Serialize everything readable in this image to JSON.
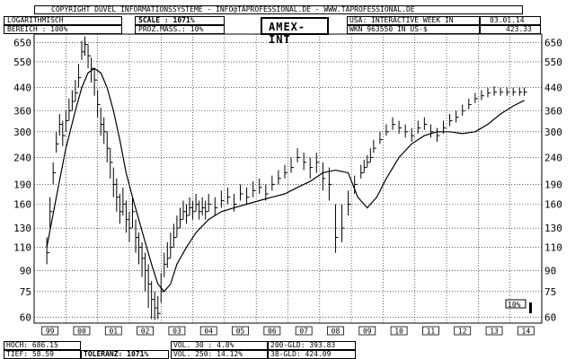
{
  "header": {
    "copyright": "COPYRIGHT  DUVEL INFORMATIONSSYSTEME  -  INFO@TAPROFESSIONAL.DE  -  WWW.TAPROFESSIONAL.DE",
    "scale_mode": "LOGARITHMISCH",
    "bereich": "BEREICH  :   100%",
    "scale": "SCALE :  1071%",
    "prozmass": "PROZ.MASS.:  10%",
    "title": "AMEX-INT",
    "source": "USA: INTERACTIVE WEEK IN",
    "date": "03.01.14",
    "wkn": "WKN 963550   IN US-$",
    "last_price": "423.33"
  },
  "footer": {
    "hoch": "HOCH: 686.15",
    "tief": "TIEF: 58.59",
    "toleranz": "TOLERANZ: 1071%",
    "vol30": "VOL. 30 :  4.8%",
    "vol250": "VOL. 250: 14.12%",
    "gld200": "200-GLD: 393.83",
    "gld38": "38-GLD: 424.09"
  },
  "marker_label": "10%",
  "chart_data": {
    "type": "line",
    "title": "AMEX-INT",
    "y_scale": "log",
    "ylim": [
      57,
      700
    ],
    "y_ticks": [
      60,
      75,
      90,
      110,
      130,
      160,
      190,
      240,
      300,
      360,
      440,
      550,
      650
    ],
    "x_tick_labels": [
      "99",
      "00",
      "01",
      "02",
      "03",
      "04",
      "05",
      "06",
      "07",
      "08",
      "09",
      "10",
      "11",
      "12",
      "13",
      "14"
    ],
    "grid": true,
    "series": [
      {
        "style": "ohlc-bars",
        "x": [
          1998.9,
          1999.0,
          1999.1,
          1999.2,
          1999.3,
          1999.4,
          1999.5,
          1999.6,
          1999.7,
          1999.8,
          1999.9,
          2000.0,
          2000.1,
          2000.2,
          2000.3,
          2000.4,
          2000.5,
          2000.6,
          2000.7,
          2000.8,
          2000.9,
          2001.0,
          2001.1,
          2001.2,
          2001.3,
          2001.4,
          2001.5,
          2001.6,
          2001.7,
          2001.8,
          2001.9,
          2002.0,
          2002.1,
          2002.2,
          2002.3,
          2002.4,
          2002.5,
          2002.6,
          2002.7,
          2002.8,
          2002.9,
          2003.0,
          2003.1,
          2003.2,
          2003.3,
          2003.4,
          2003.5,
          2003.6,
          2003.7,
          2003.8,
          2003.9,
          2004.0,
          2004.2,
          2004.4,
          2004.6,
          2004.8,
          2005.0,
          2005.2,
          2005.4,
          2005.6,
          2005.8,
          2006.0,
          2006.2,
          2006.4,
          2006.6,
          2006.8,
          2007.0,
          2007.2,
          2007.4,
          2007.6,
          2007.8,
          2008.0,
          2008.2,
          2008.4,
          2008.6,
          2008.8,
          2008.9,
          2009.0,
          2009.1,
          2009.2,
          2009.4,
          2009.6,
          2009.8,
          2010.0,
          2010.2,
          2010.4,
          2010.6,
          2010.8,
          2011.0,
          2011.2,
          2011.4,
          2011.6,
          2011.8,
          2012.0,
          2012.2,
          2012.4,
          2012.6,
          2012.8,
          2013.0,
          2013.2,
          2013.4,
          2013.6,
          2013.8,
          2013.95
        ],
        "close": [
          105,
          150,
          210,
          270,
          320,
          290,
          330,
          360,
          390,
          420,
          480,
          600,
          640,
          580,
          520,
          470,
          380,
          320,
          300,
          260,
          230,
          190,
          170,
          150,
          160,
          140,
          130,
          150,
          120,
          110,
          100,
          90,
          80,
          70,
          65,
          62,
          75,
          95,
          100,
          110,
          120,
          130,
          140,
          150,
          145,
          155,
          150,
          160,
          150,
          155,
          150,
          160,
          155,
          165,
          170,
          160,
          175,
          170,
          180,
          185,
          175,
          190,
          200,
          210,
          220,
          240,
          230,
          220,
          230,
          200,
          190,
          120,
          130,
          160,
          190,
          210,
          220,
          230,
          240,
          260,
          280,
          300,
          320,
          310,
          300,
          290,
          310,
          320,
          300,
          290,
          310,
          330,
          340,
          360,
          380,
          400,
          410,
          420,
          423,
          423,
          423,
          423,
          423,
          423
        ],
        "high": [
          120,
          170,
          230,
          300,
          350,
          330,
          360,
          400,
          430,
          470,
          540,
          660,
          686,
          640,
          570,
          520,
          430,
          370,
          340,
          300,
          260,
          220,
          200,
          175,
          185,
          165,
          150,
          170,
          140,
          125,
          115,
          105,
          95,
          82,
          75,
          72,
          88,
          105,
          115,
          125,
          135,
          145,
          155,
          165,
          160,
          170,
          165,
          175,
          165,
          170,
          165,
          175,
          170,
          180,
          185,
          175,
          190,
          185,
          195,
          200,
          190,
          205,
          215,
          225,
          240,
          260,
          250,
          240,
          250,
          230,
          220,
          160,
          160,
          180,
          205,
          225,
          235,
          245,
          260,
          280,
          300,
          320,
          340,
          330,
          320,
          310,
          330,
          340,
          320,
          310,
          330,
          350,
          360,
          380,
          400,
          420,
          430,
          440,
          445,
          440,
          440,
          440,
          440,
          440
        ],
        "low": [
          95,
          130,
          190,
          250,
          290,
          265,
          300,
          330,
          360,
          390,
          440,
          560,
          580,
          520,
          460,
          410,
          340,
          290,
          270,
          230,
          200,
          170,
          150,
          135,
          145,
          125,
          115,
          130,
          105,
          95,
          85,
          75,
          65,
          59,
          58.59,
          59,
          68,
          85,
          92,
          100,
          110,
          120,
          130,
          140,
          135,
          145,
          140,
          150,
          140,
          145,
          140,
          150,
          145,
          155,
          160,
          150,
          165,
          160,
          170,
          175,
          165,
          180,
          190,
          200,
          210,
          230,
          215,
          200,
          210,
          180,
          165,
          105,
          115,
          145,
          175,
          200,
          210,
          220,
          230,
          250,
          270,
          290,
          305,
          295,
          285,
          275,
          295,
          305,
          285,
          275,
          295,
          315,
          325,
          345,
          365,
          385,
          395,
          405,
          410,
          410,
          410,
          410,
          410,
          410
        ]
      },
      {
        "style": "moving-average-200",
        "x": [
          1998.9,
          1999.2,
          1999.5,
          1999.8,
          2000.0,
          2000.2,
          2000.4,
          2000.6,
          2000.8,
          2001.0,
          2001.2,
          2001.4,
          2001.6,
          2001.8,
          2002.0,
          2002.2,
          2002.4,
          2002.6,
          2002.8,
          2003.0,
          2003.3,
          2003.6,
          2004.0,
          2004.4,
          2004.8,
          2005.2,
          2005.6,
          2006.0,
          2006.4,
          2006.8,
          2007.2,
          2007.6,
          2008.0,
          2008.4,
          2008.7,
          2009.0,
          2009.3,
          2009.6,
          2010.0,
          2010.4,
          2010.8,
          2011.2,
          2011.6,
          2012.0,
          2012.4,
          2012.8,
          2013.2,
          2013.6,
          2013.95
        ],
        "values": [
          110,
          170,
          260,
          360,
          440,
          500,
          520,
          500,
          440,
          360,
          280,
          210,
          170,
          140,
          115,
          95,
          80,
          75,
          80,
          95,
          110,
          125,
          140,
          150,
          155,
          160,
          165,
          170,
          175,
          185,
          195,
          210,
          215,
          210,
          170,
          155,
          170,
          200,
          240,
          270,
          290,
          300,
          300,
          295,
          300,
          320,
          350,
          375,
          394
        ]
      }
    ]
  }
}
